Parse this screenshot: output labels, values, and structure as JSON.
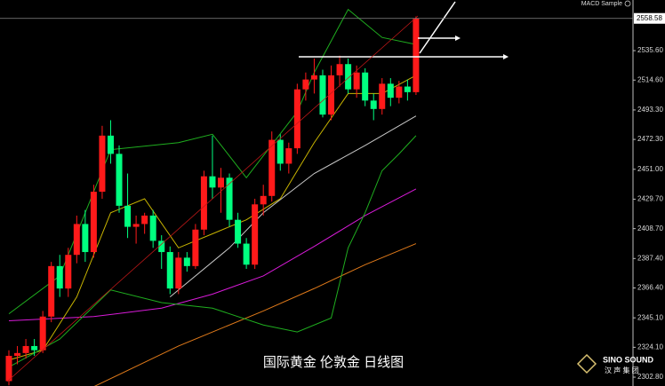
{
  "chart_data": {
    "type": "candlestick",
    "indicator_name": "MACD Sample",
    "caption": "国际黄金 伦敦金 日线图",
    "logo": {
      "brand": "SINO SOUND",
      "subtitle": "汉 声 集 团"
    },
    "up_color": "#ff1a1a",
    "down_color": "#00ff80",
    "ylim": [
      2296.5,
      2571.7
    ],
    "yticks": [
      {
        "value": 2535.6,
        "label": "2535.60"
      },
      {
        "value": 2514.6,
        "label": "2514.60"
      },
      {
        "value": 2493.3,
        "label": "2493.30"
      },
      {
        "value": 2472.3,
        "label": "2472.30"
      },
      {
        "value": 2451,
        "label": "2451.00"
      },
      {
        "value": 2429.7,
        "label": "2429.70"
      },
      {
        "value": 2408.7,
        "label": "2408.70"
      },
      {
        "value": 2387.4,
        "label": "2387.40"
      },
      {
        "value": 2366.4,
        "label": "2366.40"
      },
      {
        "value": 2345.1,
        "label": "2345.10"
      },
      {
        "value": 2324.1,
        "label": "2324.10"
      },
      {
        "value": 2302.8,
        "label": "2302.80"
      }
    ],
    "candles": {
      "open": [
        2300,
        2318,
        2320,
        2325,
        2322,
        2346,
        2382,
        2366,
        2390,
        2412,
        2392,
        2435,
        2475,
        2462,
        2425,
        2410,
        2412,
        2418,
        2400,
        2392,
        2366,
        2388,
        2382,
        2408,
        2446,
        2438,
        2445,
        2415,
        2398,
        2383,
        2426,
        2432,
        2472,
        2455,
        2466,
        2508,
        2515,
        2518,
        2490,
        2518,
        2526,
        2508,
        2520,
        2500,
        2494,
        2512,
        2502,
        2510,
        2506
      ],
      "high": [
        2322,
        2325,
        2330,
        2330,
        2350,
        2385,
        2390,
        2395,
        2418,
        2422,
        2440,
        2482,
        2486,
        2468,
        2448,
        2418,
        2420,
        2422,
        2404,
        2396,
        2392,
        2392,
        2412,
        2450,
        2475,
        2452,
        2448,
        2420,
        2402,
        2430,
        2440,
        2478,
        2476,
        2470,
        2512,
        2520,
        2530,
        2522,
        2525,
        2532,
        2530,
        2525,
        2523,
        2505,
        2516,
        2516,
        2514,
        2515,
        2560
      ],
      "low": [
        2297,
        2312,
        2316,
        2318,
        2320,
        2342,
        2360,
        2360,
        2384,
        2385,
        2388,
        2430,
        2455,
        2420,
        2402,
        2398,
        2405,
        2395,
        2380,
        2362,
        2362,
        2378,
        2380,
        2404,
        2430,
        2420,
        2410,
        2395,
        2380,
        2380,
        2418,
        2428,
        2450,
        2448,
        2462,
        2500,
        2505,
        2488,
        2486,
        2510,
        2505,
        2502,
        2496,
        2486,
        2490,
        2496,
        2498,
        2500,
        2504
      ],
      "close": [
        2318,
        2320,
        2325,
        2322,
        2346,
        2382,
        2366,
        2390,
        2412,
        2392,
        2435,
        2475,
        2462,
        2425,
        2410,
        2412,
        2418,
        2400,
        2392,
        2366,
        2388,
        2382,
        2408,
        2446,
        2438,
        2445,
        2415,
        2398,
        2383,
        2426,
        2432,
        2472,
        2455,
        2466,
        2508,
        2515,
        2518,
        2490,
        2518,
        2526,
        2508,
        2520,
        2500,
        2494,
        2512,
        2502,
        2510,
        2506,
        2558.58
      ]
    },
    "overlays": [
      {
        "color": "#d81bd8",
        "x": [
          0,
          10,
          18,
          24,
          30,
          36,
          42,
          48
        ],
        "values": [
          2343,
          2346,
          2352,
          2362,
          2375,
          2396,
          2418,
          2437
        ]
      },
      {
        "color": "#e07a1a",
        "x": [
          10,
          20,
          30,
          36,
          42,
          48
        ],
        "values": [
          2296,
          2325,
          2350,
          2366,
          2383,
          2398
        ]
      },
      {
        "color": "#c8c8c8",
        "x": [
          19,
          26,
          30,
          36,
          42,
          48
        ],
        "values": [
          2360,
          2395,
          2420,
          2448,
          2468,
          2489
        ]
      },
      {
        "color": "#c8b400",
        "x": [
          0,
          4,
          8,
          12,
          16,
          20,
          24,
          28,
          32,
          36,
          40,
          44,
          48
        ],
        "values": [
          2315,
          2322,
          2360,
          2420,
          2430,
          2395,
          2405,
          2415,
          2430,
          2470,
          2505,
          2505,
          2518
        ]
      },
      {
        "color": "#1fae1f",
        "x": [
          0,
          6,
          12,
          20,
          24,
          28,
          34,
          36,
          40,
          44,
          48
        ],
        "values": [
          2348,
          2375,
          2465,
          2470,
          2476,
          2445,
          2492,
          2520,
          2565,
          2545,
          2540
        ]
      },
      {
        "color": "#1fae1f",
        "x": [
          0,
          6,
          12,
          18,
          24,
          30,
          34,
          38,
          40,
          42,
          44,
          46,
          48
        ],
        "values": [
          2310,
          2330,
          2365,
          2356,
          2352,
          2340,
          2335,
          2345,
          2395,
          2420,
          2450,
          2462,
          2475
        ]
      }
    ]
  }
}
